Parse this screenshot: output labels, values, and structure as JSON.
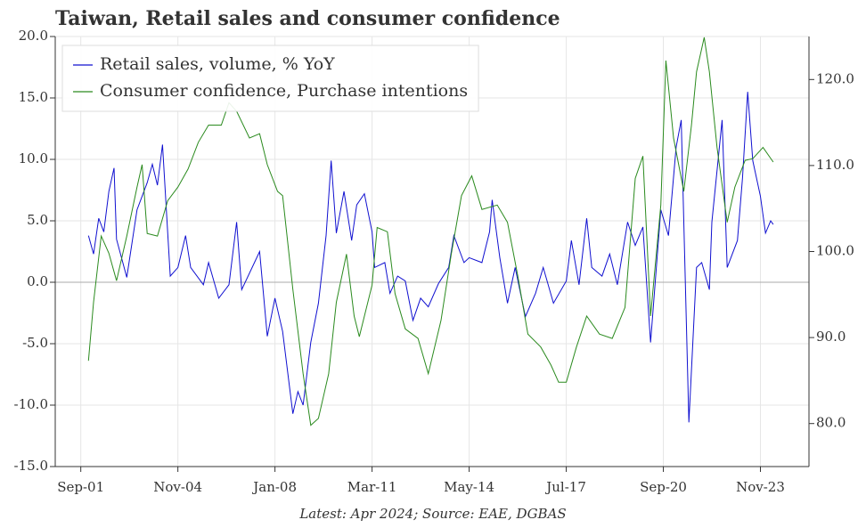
{
  "chart_data": {
    "type": "line",
    "title": "Taiwan, Retail sales and consumer confidence",
    "source": "Latest: Apr 2024; Source: EAE, DGBAS",
    "xlim": [
      "Nov-00",
      "Jun-25"
    ],
    "xticks": [
      "Sep-01",
      "Nov-04",
      "Jan-08",
      "Mar-11",
      "May-14",
      "Jul-17",
      "Sep-20",
      "Nov-23"
    ],
    "ylim": [
      -15,
      20
    ],
    "yticks": [
      {
        "value": -15,
        "label": "-15.0"
      },
      {
        "value": -10,
        "label": "-10.0"
      },
      {
        "value": -5,
        "label": "-5.0"
      },
      {
        "value": 0,
        "label": "0.0"
      },
      {
        "value": 5,
        "label": "5.0"
      },
      {
        "value": 10,
        "label": "10.0"
      },
      {
        "value": 15,
        "label": "15.0"
      },
      {
        "value": 20,
        "label": "20.0"
      }
    ],
    "y2lim": [
      75,
      125
    ],
    "y2ticks": [
      {
        "value": 80,
        "label": "80.0"
      },
      {
        "value": 90,
        "label": "90.0"
      },
      {
        "value": 100,
        "label": "100.0"
      },
      {
        "value": 110,
        "label": "110.0"
      },
      {
        "value": 120,
        "label": "120.0"
      }
    ],
    "grid": true,
    "legend": "upper left",
    "series": [
      {
        "name": "Retail sales, volume, % YoY",
        "color": "#1010d0",
        "x": [
          "Dec-01",
          "Feb-02",
          "Apr-02",
          "Jun-02",
          "Aug-02",
          "Oct-02",
          "Nov-02",
          "Mar-03",
          "Jul-03",
          "Nov-03",
          "Jan-04",
          "Mar-04",
          "May-04",
          "Aug-04",
          "Nov-04",
          "Feb-05",
          "Apr-05",
          "Sep-05",
          "Nov-05",
          "Mar-06",
          "Jul-06",
          "Oct-06",
          "Dec-06",
          "Jul-07",
          "Oct-07",
          "Jan-08",
          "Apr-08",
          "Aug-08",
          "Oct-08",
          "Dec-08",
          "Mar-09",
          "Jun-09",
          "Sep-09",
          "Nov-09",
          "Jan-10",
          "Apr-10",
          "Jul-10",
          "Sep-10",
          "Dec-10",
          "Mar-11",
          "Apr-11",
          "Aug-11",
          "Oct-11",
          "Jan-12",
          "Apr-12",
          "Jul-12",
          "Oct-12",
          "Jan-13",
          "May-13",
          "Sep-13",
          "Nov-13",
          "Mar-14",
          "May-14",
          "Oct-14",
          "Jan-15",
          "Feb-15",
          "May-15",
          "Aug-15",
          "Nov-15",
          "Mar-16",
          "Jul-16",
          "Oct-16",
          "Feb-17",
          "Jul-17",
          "Sep-17",
          "Dec-17",
          "Mar-18",
          "May-18",
          "Sep-18",
          "Dec-18",
          "Mar-19",
          "Jul-19",
          "Oct-19",
          "Jan-20",
          "Apr-20",
          "Aug-20",
          "Nov-20",
          "Feb-21",
          "Apr-21",
          "Jul-21",
          "Oct-21",
          "Dec-21",
          "Mar-22",
          "Apr-22",
          "Aug-22",
          "Oct-22",
          "Feb-23",
          "Apr-23",
          "Jun-23",
          "Aug-23",
          "Nov-23",
          "Jan-24",
          "Mar-24",
          "Apr-24"
        ],
        "values": [
          3.8,
          2.3,
          5.2,
          4.1,
          7.4,
          9.3,
          3.5,
          0.4,
          5.9,
          8.1,
          9.6,
          7.9,
          11.2,
          0.5,
          1.2,
          3.8,
          1.2,
          -0.2,
          1.6,
          -1.3,
          -0.2,
          4.9,
          -0.6,
          2.5,
          -4.4,
          -1.3,
          -4.0,
          -10.7,
          -8.9,
          -10.0,
          -4.9,
          -1.7,
          3.8,
          9.9,
          4.0,
          7.4,
          3.4,
          6.3,
          7.2,
          4.1,
          1.2,
          1.6,
          -0.9,
          0.5,
          0.1,
          -3.1,
          -1.3,
          -2.0,
          -0.1,
          1.2,
          3.8,
          1.6,
          2.0,
          1.6,
          4.1,
          6.7,
          2.0,
          -1.7,
          1.2,
          -2.8,
          -0.9,
          1.2,
          -1.7,
          0.1,
          3.4,
          -0.2,
          5.2,
          1.2,
          0.5,
          2.3,
          -0.2,
          4.9,
          3.0,
          4.5,
          -4.9,
          5.9,
          3.8,
          11.0,
          13.2,
          -11.4,
          1.2,
          1.6,
          -0.6,
          4.9,
          13.2,
          1.2,
          3.4,
          8.5,
          15.5,
          9.9,
          7.0,
          4.0,
          5.0,
          4.7
        ]
      },
      {
        "name": "Consumer confidence, Purchase intentions",
        "color": "#2a8a1e",
        "axis": "y2",
        "x": [
          "Dec-01",
          "Feb-02",
          "May-02",
          "Aug-02",
          "Nov-02",
          "Mar-03",
          "Jul-03",
          "Sep-03",
          "Nov-03",
          "Mar-04",
          "Jul-04",
          "Nov-04",
          "Mar-05",
          "Jul-05",
          "Nov-05",
          "Apr-06",
          "Jul-06",
          "Oct-06",
          "Mar-07",
          "Jul-07",
          "Oct-07",
          "Feb-08",
          "Apr-08",
          "Aug-08",
          "Dec-08",
          "Mar-09",
          "Jun-09",
          "Oct-09",
          "Jan-10",
          "May-10",
          "Aug-10",
          "Oct-10",
          "Mar-11",
          "May-11",
          "Sep-11",
          "Dec-11",
          "Apr-12",
          "Sep-12",
          "Jan-13",
          "Jun-13",
          "Oct-13",
          "Feb-14",
          "Jun-14",
          "Oct-14",
          "Apr-15",
          "Aug-15",
          "Dec-15",
          "Apr-16",
          "Sep-16",
          "Jan-17",
          "Apr-17",
          "Jul-17",
          "Nov-17",
          "Mar-18",
          "Aug-18",
          "Jan-19",
          "Jun-19",
          "Oct-19",
          "Jan-20",
          "Apr-20",
          "Aug-20",
          "Oct-20",
          "Jan-21",
          "May-21",
          "Aug-21",
          "Oct-21",
          "Jan-22",
          "Mar-22",
          "Jun-22",
          "Oct-22",
          "Jan-23",
          "May-23",
          "Aug-23",
          "Dec-23",
          "Apr-24"
        ],
        "values": [
          87.3,
          94.1,
          101.8,
          99.8,
          96.6,
          101.8,
          107.5,
          110.1,
          102.1,
          101.8,
          105.9,
          107.5,
          109.6,
          112.7,
          114.7,
          114.7,
          117.3,
          116.3,
          113.2,
          113.7,
          110.1,
          107.0,
          106.5,
          95.6,
          85.8,
          79.8,
          80.6,
          85.8,
          94.1,
          99.7,
          92.5,
          90.1,
          96.1,
          102.8,
          102.3,
          95.1,
          91.0,
          89.9,
          85.8,
          92.0,
          99.7,
          106.5,
          108.8,
          104.9,
          105.4,
          103.4,
          97.2,
          90.4,
          88.9,
          86.8,
          84.8,
          84.8,
          88.9,
          92.5,
          90.4,
          89.9,
          93.5,
          108.5,
          111.1,
          92.5,
          105.4,
          122.2,
          113.2,
          107.0,
          114.7,
          120.9,
          124.9,
          120.9,
          112.1,
          103.4,
          107.5,
          110.6,
          110.8,
          112.1,
          110.4
        ]
      }
    ]
  }
}
